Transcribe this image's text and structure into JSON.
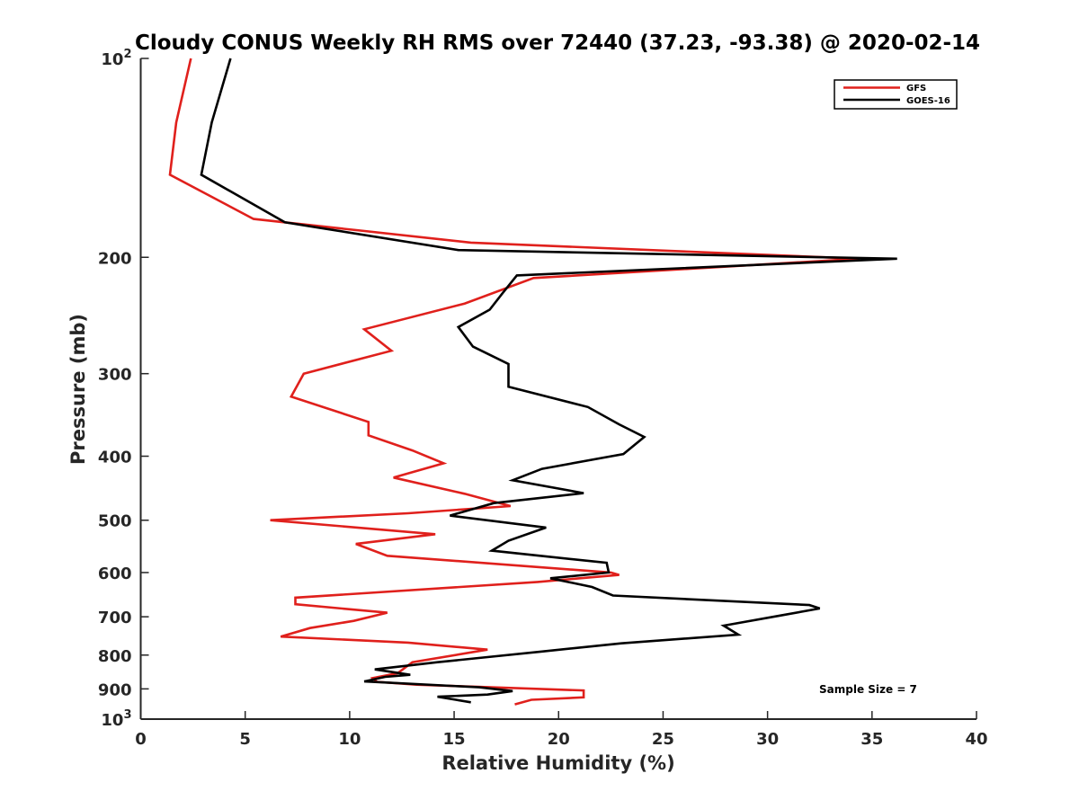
{
  "chart_data": {
    "type": "line",
    "title": "Cloudy CONUS Weekly RH RMS over 72440 (37.23, -93.38) @ 2020-02-14",
    "xlabel": "Relative Humidity (%)",
    "ylabel": "Pressure (mb)",
    "xlim": [
      0,
      40
    ],
    "ylim": [
      100,
      1000
    ],
    "y_scale": "log",
    "y_reversed": true,
    "grid": false,
    "legend_position": "top-right",
    "x_ticks": [
      "0",
      "5",
      "10",
      "15",
      "20",
      "25",
      "30",
      "35",
      "40"
    ],
    "y_ticks": [
      {
        "value": 100,
        "base": "10",
        "exp": "2"
      },
      {
        "value": 200,
        "label": "200"
      },
      {
        "value": 300,
        "label": "300"
      },
      {
        "value": 400,
        "label": "400"
      },
      {
        "value": 500,
        "label": "500"
      },
      {
        "value": 600,
        "label": "600"
      },
      {
        "value": 700,
        "label": "700"
      },
      {
        "value": 800,
        "label": "800"
      },
      {
        "value": 900,
        "label": "900"
      },
      {
        "value": 1000,
        "base": "10",
        "exp": "3"
      }
    ],
    "series": [
      {
        "name": "GFS",
        "color": "#e0201c",
        "points": [
          [
            2.4,
            100
          ],
          [
            1.7,
            125
          ],
          [
            1.4,
            150
          ],
          [
            5.4,
            175
          ],
          [
            15.8,
            190
          ],
          [
            34.4,
            201
          ],
          [
            18.8,
            215
          ],
          [
            15.5,
            235
          ],
          [
            10.7,
            257
          ],
          [
            12.0,
            277
          ],
          [
            7.8,
            300
          ],
          [
            7.2,
            325
          ],
          [
            10.9,
            355
          ],
          [
            10.9,
            372
          ],
          [
            13.0,
            392
          ],
          [
            14.5,
            410
          ],
          [
            12.1,
            431
          ],
          [
            15.5,
            456
          ],
          [
            17.7,
            476
          ],
          [
            12.8,
            488
          ],
          [
            6.2,
            500
          ],
          [
            14.1,
            525
          ],
          [
            10.3,
            543
          ],
          [
            11.8,
            566
          ],
          [
            22.5,
            600
          ],
          [
            22.9,
            605
          ],
          [
            19.0,
            620
          ],
          [
            7.4,
            655
          ],
          [
            7.4,
            670
          ],
          [
            11.8,
            690
          ],
          [
            10.2,
            710
          ],
          [
            8.1,
            728
          ],
          [
            6.7,
            750
          ],
          [
            12.8,
            766
          ],
          [
            16.6,
            785
          ],
          [
            13.0,
            820
          ],
          [
            12.3,
            852
          ],
          [
            11.1,
            867
          ],
          [
            11.3,
            878
          ],
          [
            13.2,
            887
          ],
          [
            21.2,
            905
          ],
          [
            21.2,
            927
          ],
          [
            18.7,
            935
          ],
          [
            17.9,
            950
          ]
        ]
      },
      {
        "name": "GOES-16",
        "color": "#000000",
        "points": [
          [
            4.3,
            100
          ],
          [
            3.4,
            125
          ],
          [
            2.9,
            150
          ],
          [
            6.9,
            177
          ],
          [
            15.2,
            195
          ],
          [
            36.2,
            201
          ],
          [
            18.0,
            213
          ],
          [
            17.3,
            227
          ],
          [
            16.7,
            240
          ],
          [
            15.2,
            255
          ],
          [
            15.9,
            273
          ],
          [
            17.6,
            290
          ],
          [
            17.6,
            314
          ],
          [
            21.4,
            337
          ],
          [
            22.9,
            358
          ],
          [
            24.1,
            374
          ],
          [
            23.1,
            397
          ],
          [
            19.2,
            418
          ],
          [
            17.8,
            435
          ],
          [
            21.2,
            455
          ],
          [
            16.9,
            471
          ],
          [
            14.8,
            492
          ],
          [
            19.4,
            513
          ],
          [
            17.6,
            537
          ],
          [
            16.8,
            556
          ],
          [
            22.3,
            580
          ],
          [
            22.4,
            600
          ],
          [
            19.6,
            612
          ],
          [
            21.6,
            631
          ],
          [
            22.6,
            650
          ],
          [
            32.0,
            672
          ],
          [
            32.5,
            680
          ],
          [
            30.6,
            697
          ],
          [
            27.9,
            722
          ],
          [
            28.6,
            745
          ],
          [
            23.0,
            768
          ],
          [
            19.2,
            790
          ],
          [
            14.2,
            820
          ],
          [
            11.2,
            841
          ],
          [
            12.9,
            857
          ],
          [
            11.7,
            863
          ],
          [
            10.7,
            877
          ],
          [
            16.2,
            895
          ],
          [
            17.8,
            907
          ],
          [
            16.6,
            918
          ],
          [
            14.2,
            925
          ],
          [
            15.8,
            943
          ]
        ]
      }
    ],
    "legend": [
      {
        "label": "GFS",
        "color": "#e0201c"
      },
      {
        "label": "GOES-16",
        "color": "#000000"
      }
    ],
    "annotation": "Sample Size = 7"
  }
}
